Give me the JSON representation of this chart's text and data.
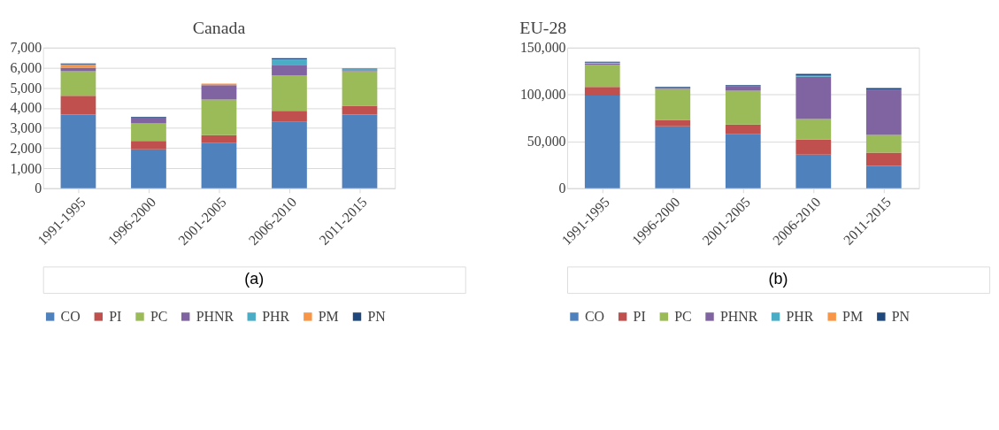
{
  "chart_data": [
    {
      "type": "bar",
      "title": "Canada",
      "stacked": true,
      "grid": "y",
      "legend": "bottom",
      "categories": [
        "1991-1995",
        "1996-2000",
        "2001-2005",
        "2006-2010",
        "2011-2015"
      ],
      "ylim": [
        0,
        7000
      ],
      "yticks": [
        0,
        {
          "value": 1000,
          "label": "1,000"
        },
        {
          "value": 2000,
          "label": "2,000"
        },
        {
          "value": 3000,
          "label": "3,000"
        },
        {
          "value": 4000,
          "label": "4,000"
        },
        {
          "value": 5000,
          "label": "5,000"
        },
        {
          "value": 6000,
          "label": "6,000"
        },
        {
          "value": 7000,
          "label": "7,000"
        }
      ],
      "series": [
        {
          "name": "CO",
          "color": "#4f81bd",
          "values": [
            3670,
            1940,
            2270,
            3300,
            3670
          ]
        },
        {
          "name": "PI",
          "color": "#c0504d",
          "values": [
            930,
            420,
            380,
            560,
            440
          ]
        },
        {
          "name": "PC",
          "color": "#9bbb59",
          "values": [
            1220,
            870,
            1770,
            1770,
            1710
          ]
        },
        {
          "name": "PHNR",
          "color": "#8064a2",
          "values": [
            180,
            290,
            710,
            510,
            60
          ]
        },
        {
          "name": "PHR",
          "color": "#4bacc6",
          "values": [
            0,
            0,
            0,
            240,
            40
          ]
        },
        {
          "name": "PM",
          "color": "#f79646",
          "values": [
            170,
            0,
            80,
            30,
            0
          ]
        },
        {
          "name": "PN",
          "color": "#1f497d",
          "values": [
            40,
            40,
            null,
            60,
            40
          ]
        }
      ],
      "annotations": [
        "(a)"
      ]
    },
    {
      "type": "bar",
      "title": "EU-28",
      "stacked": true,
      "grid": "y",
      "legend": "bottom",
      "categories": [
        "1991-1995",
        "1996-2000",
        "2001-2005",
        "2006-2010",
        "2011-2015"
      ],
      "ylim": [
        0,
        150000
      ],
      "yticks": [
        0,
        {
          "value": 50000,
          "label": "50,000"
        },
        {
          "value": 100000,
          "label": "100,000"
        },
        {
          "value": 150000,
          "label": "150,000"
        }
      ],
      "series": [
        {
          "name": "CO",
          "color": "#4f81bd",
          "values": [
            99000,
            66000,
            58000,
            36000,
            24000
          ]
        },
        {
          "name": "PI",
          "color": "#c0504d",
          "values": [
            9000,
            7000,
            10000,
            16000,
            14000
          ]
        },
        {
          "name": "PC",
          "color": "#9bbb59",
          "values": [
            24000,
            33000,
            36000,
            22000,
            19000
          ]
        },
        {
          "name": "PHNR",
          "color": "#8064a2",
          "values": [
            1000,
            1000,
            5000,
            45000,
            48000
          ]
        },
        {
          "name": "PHR",
          "color": "#4bacc6",
          "values": [
            0,
            0,
            0,
            1000,
            0
          ]
        },
        {
          "name": "PM",
          "color": "#f79646",
          "values": [
            1000,
            0,
            0,
            0,
            null
          ]
        },
        {
          "name": "PN",
          "color": "#1f497d",
          "values": [
            1000,
            1000,
            1000,
            2000,
            2000
          ]
        }
      ],
      "annotations": [
        "(b)"
      ]
    }
  ]
}
